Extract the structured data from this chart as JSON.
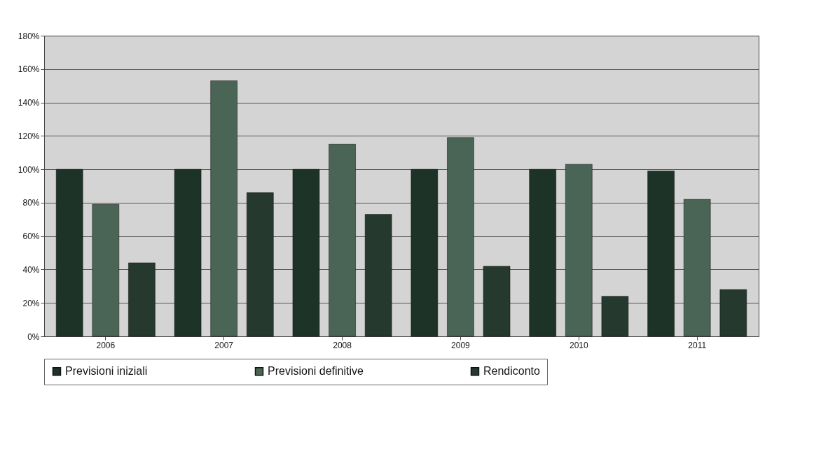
{
  "chart_data": {
    "type": "bar",
    "categories": [
      "2006",
      "2007",
      "2008",
      "2009",
      "2010",
      "2011"
    ],
    "series": [
      {
        "name": "Previsioni iniziali",
        "color": "#1d3327",
        "values": [
          100,
          100,
          100,
          100,
          100,
          99
        ]
      },
      {
        "name": "Previsioni definitive",
        "color": "#4a6456",
        "values": [
          79,
          153,
          115,
          119,
          103,
          82
        ]
      },
      {
        "name": "Rendiconto",
        "color": "#26392e",
        "values": [
          44,
          86,
          73,
          42,
          24,
          28
        ]
      }
    ],
    "ylim": [
      0,
      180
    ],
    "yticks": [
      {
        "value": 0,
        "label": "0%"
      },
      {
        "value": 20,
        "label": "20%"
      },
      {
        "value": 40,
        "label": "40%"
      },
      {
        "value": 60,
        "label": "60%"
      },
      {
        "value": 80,
        "label": "80%"
      },
      {
        "value": 100,
        "label": "100%"
      },
      {
        "value": 120,
        "label": "120%"
      },
      {
        "value": 140,
        "label": "140%"
      },
      {
        "value": 160,
        "label": "160%"
      },
      {
        "value": 180,
        "label": "180%"
      }
    ],
    "grid": "y",
    "legend": "bottom"
  }
}
